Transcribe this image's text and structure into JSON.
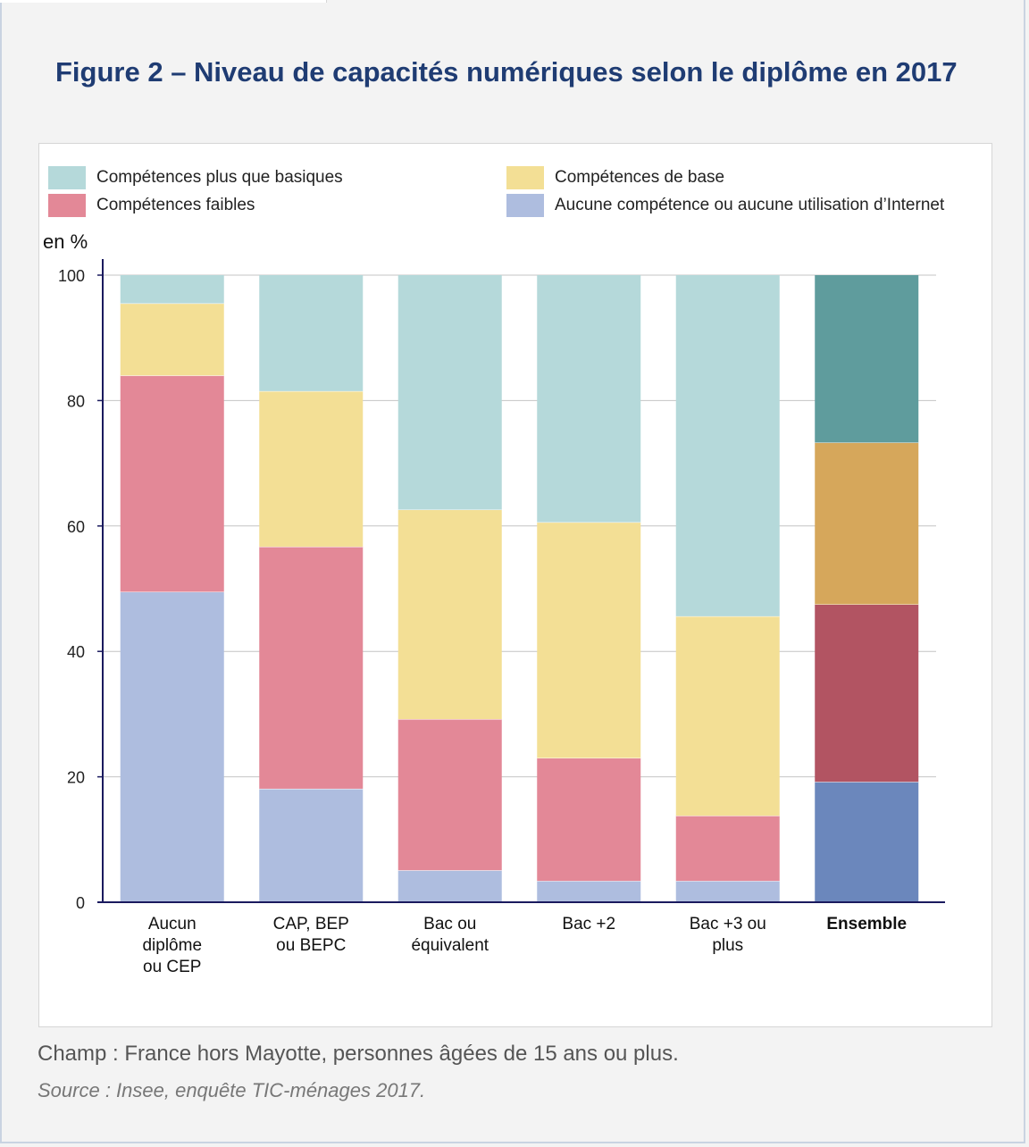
{
  "title": "Figure 2 – Niveau de capacités numériques selon le diplôme en 2017",
  "unit_label": "en %",
  "footnote": "Champ : France hors Mayotte, personnes âgées de 15 ans ou plus.",
  "source": "Source : Insee, enquête TIC-ménages 2017.",
  "legend": [
    {
      "label": "Compétences plus que basiques",
      "color": "#b5d9da"
    },
    {
      "label": "Compétences de base",
      "color": "#f3df95"
    },
    {
      "label": "Compétences faibles",
      "color": "#e38897"
    },
    {
      "label": "Aucune compétence ou aucune utilisation d’Internet",
      "color": "#aebddf"
    }
  ],
  "chart_data": {
    "type": "bar",
    "stacked": true,
    "ylabel": "en %",
    "ylim": [
      0,
      100
    ],
    "yticks": [
      0,
      20,
      40,
      60,
      80,
      100
    ],
    "grid": true,
    "legend_position": "top",
    "categories": [
      [
        "Aucun",
        "diplôme",
        "ou CEP"
      ],
      [
        "CAP, BEP",
        "ou BEPC"
      ],
      [
        "Bac ou",
        "équivalent"
      ],
      [
        "Bac +2"
      ],
      [
        "Bac +3 ou",
        "plus"
      ],
      [
        "Ensemble"
      ]
    ],
    "highlight_category_index": 5,
    "series": [
      {
        "name": "Aucune compétence ou aucune utilisation d’Internet",
        "values": [
          49.5,
          18.1,
          5.1,
          3.4,
          3.4,
          19.2
        ],
        "color": "#aebddf",
        "highlight_color": "#6b87bc"
      },
      {
        "name": "Compétences faibles",
        "values": [
          34.5,
          38.6,
          24.1,
          19.6,
          10.4,
          28.3
        ],
        "color": "#e38897",
        "highlight_color": "#b25462"
      },
      {
        "name": "Compétences de base",
        "values": [
          11.5,
          24.8,
          33.4,
          37.6,
          31.8,
          25.8
        ],
        "color": "#f3df95",
        "highlight_color": "#d6a75b"
      },
      {
        "name": "Compétences plus que basiques",
        "values": [
          4.5,
          18.5,
          37.4,
          39.4,
          54.4,
          26.7
        ],
        "color": "#b5d9da",
        "highlight_color": "#5f9c9d"
      }
    ]
  }
}
